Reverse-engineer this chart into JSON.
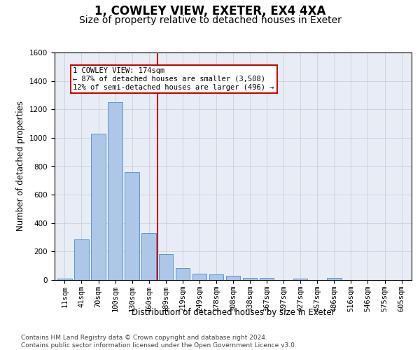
{
  "title": "1, COWLEY VIEW, EXETER, EX4 4XA",
  "subtitle": "Size of property relative to detached houses in Exeter",
  "xlabel": "Distribution of detached houses by size in Exeter",
  "ylabel": "Number of detached properties",
  "bar_labels": [
    "11sqm",
    "41sqm",
    "70sqm",
    "100sqm",
    "130sqm",
    "160sqm",
    "189sqm",
    "219sqm",
    "249sqm",
    "278sqm",
    "308sqm",
    "338sqm",
    "367sqm",
    "397sqm",
    "427sqm",
    "457sqm",
    "486sqm",
    "516sqm",
    "546sqm",
    "575sqm",
    "605sqm"
  ],
  "bar_values": [
    10,
    285,
    1030,
    1250,
    760,
    330,
    180,
    82,
    42,
    38,
    28,
    15,
    15,
    0,
    12,
    0,
    15,
    0,
    0,
    0,
    0
  ],
  "bar_color": "#aec6e8",
  "bar_edgecolor": "#5a96cc",
  "vline_x": 5.5,
  "vline_color": "#cc0000",
  "annotation_line1": "1 COWLEY VIEW: 174sqm",
  "annotation_line2": "← 87% of detached houses are smaller (3,508)",
  "annotation_line3": "12% of semi-detached houses are larger (496) →",
  "annotation_box_color": "#ffffff",
  "annotation_box_edgecolor": "#cc0000",
  "ylim": [
    0,
    1600
  ],
  "yticks": [
    0,
    200,
    400,
    600,
    800,
    1000,
    1200,
    1400,
    1600
  ],
  "grid_color": "#c8d0de",
  "bg_color": "#e8edf5",
  "footer": "Contains HM Land Registry data © Crown copyright and database right 2024.\nContains public sector information licensed under the Open Government Licence v3.0.",
  "title_fontsize": 12,
  "subtitle_fontsize": 10,
  "label_fontsize": 8.5,
  "tick_fontsize": 7.5,
  "footer_fontsize": 6.5,
  "annot_fontsize": 7.5
}
